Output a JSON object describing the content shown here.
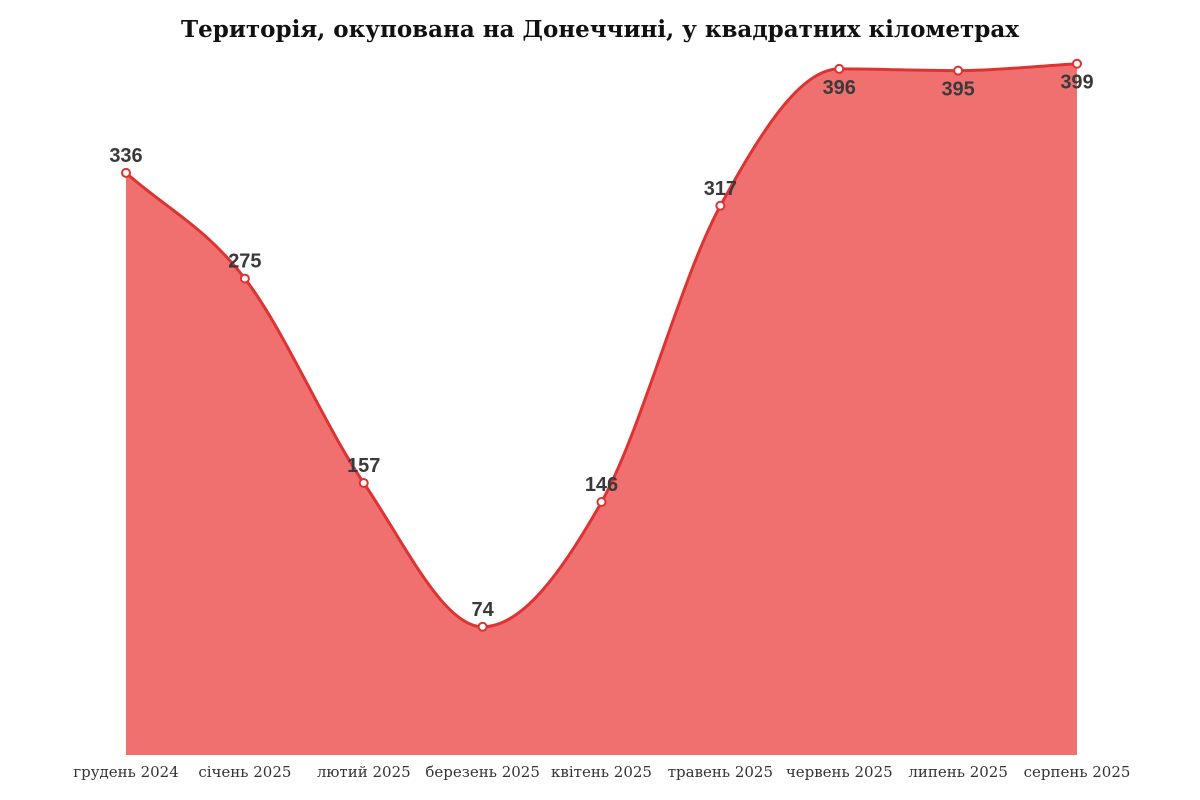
{
  "chart_data": {
    "type": "area",
    "title": "Територія, окупована на Донеччині, у квадратних кілометрах",
    "xlabel": "",
    "ylabel": "",
    "categories": [
      "грудень 2024",
      "січень 2025",
      "лютий 2025",
      "березень 2025",
      "квітень 2025",
      "травень 2025",
      "червень 2025",
      "липень 2025",
      "серпень 2025"
    ],
    "series": [
      {
        "name": "Територія, окупована на Донеччині",
        "values": [
          336,
          275,
          157,
          74,
          146,
          317,
          396,
          395,
          399
        ]
      }
    ],
    "ylim": [
      0,
      400
    ],
    "grid": false,
    "legend": "none"
  },
  "colors": {
    "area_fill": "#f07070",
    "line": "#dd3333",
    "marker_fill": "#ffffff"
  }
}
